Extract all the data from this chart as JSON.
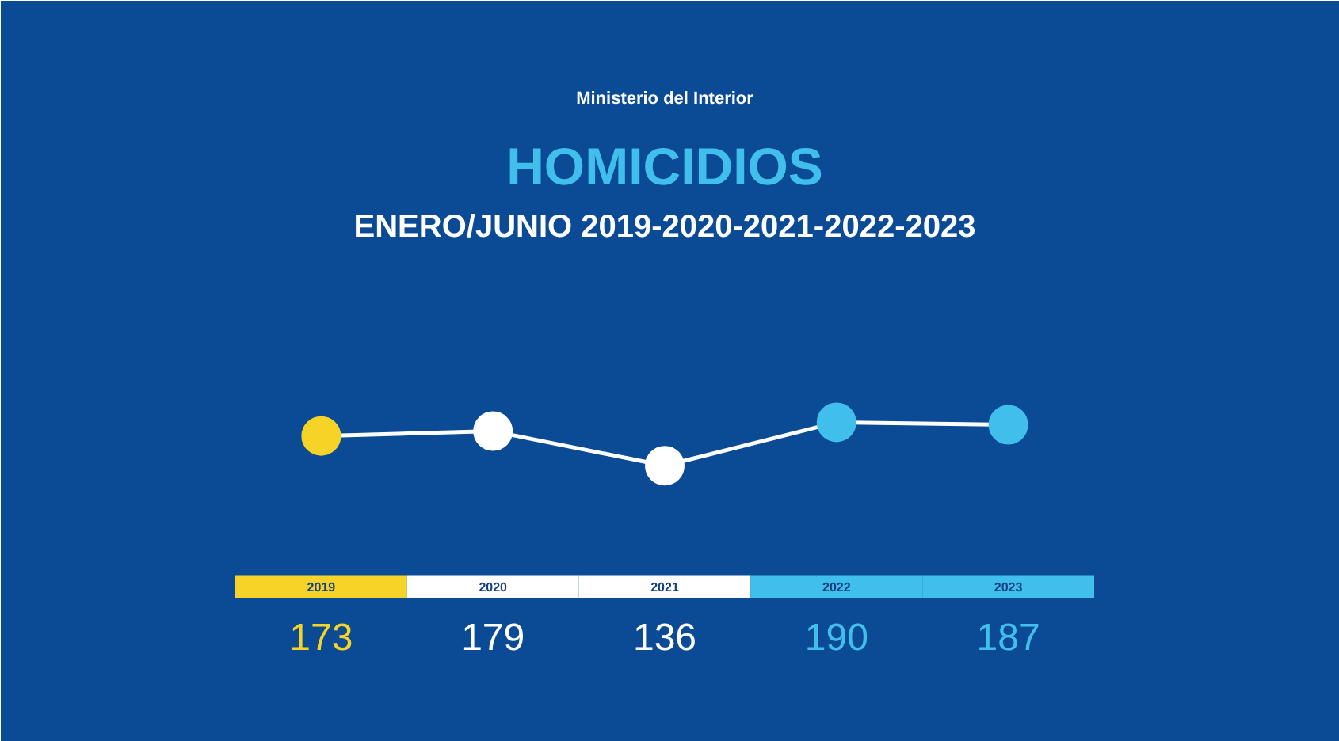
{
  "chart_data": {
    "type": "line",
    "title": "HOMICIDIOS",
    "subtitle": "ENERO/JUNIO 2019-2020-2021-2022-2023",
    "annotations": [
      "Ministerio del Interior"
    ],
    "categories": [
      "2019",
      "2020",
      "2021",
      "2022",
      "2023"
    ],
    "values": [
      173,
      179,
      136,
      190,
      187
    ],
    "color": "#ffffff",
    "colors": [
      "#f5d327",
      "#ffffff",
      "#ffffff",
      "#41bfec",
      "#41bfec"
    ],
    "marker": "circle",
    "line_style": "solid",
    "data_labels": true
  }
}
